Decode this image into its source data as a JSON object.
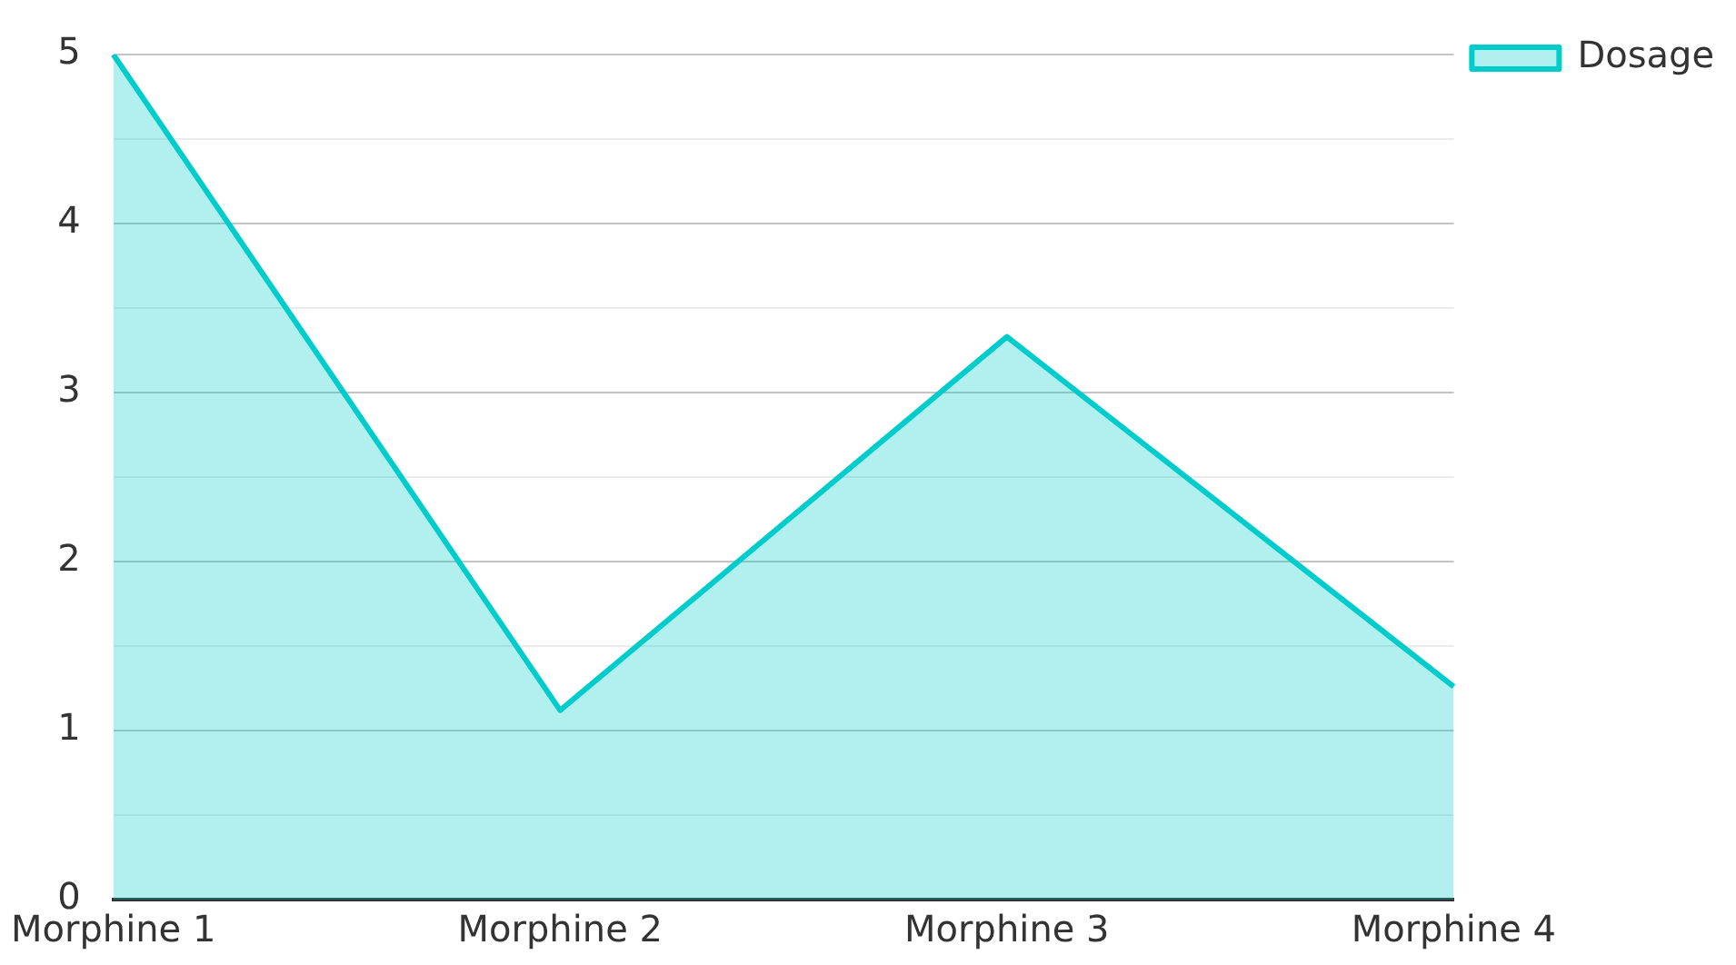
{
  "chart_data": {
    "type": "area",
    "categories": [
      "Morphine 1",
      "Morphine 2",
      "Morphine 3",
      "Morphine 4"
    ],
    "series": [
      {
        "name": "Dosage",
        "color": "#00cccc",
        "values": [
          5,
          1.12,
          3.33,
          1.26
        ]
      }
    ],
    "ylim": [
      0,
      5
    ],
    "yticks": [
      0,
      {
        "value": 0.5,
        "label": null
      },
      1,
      {
        "value": 1.5,
        "label": null
      },
      2,
      {
        "value": 2.5,
        "label": null
      },
      3,
      {
        "value": 3.5,
        "label": null
      },
      4,
      {
        "value": 4.5,
        "label": null
      },
      5
    ],
    "grid": "y",
    "legend": "top right",
    "marker": "none",
    "line_style": "solid"
  }
}
